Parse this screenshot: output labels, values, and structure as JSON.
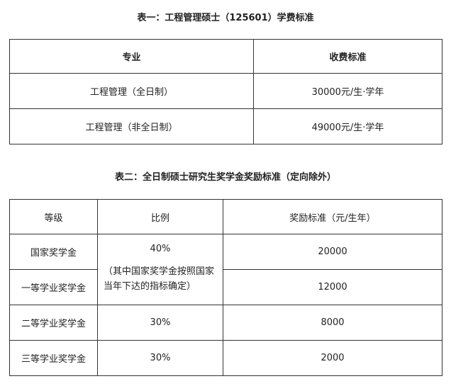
{
  "table1": {
    "title": "表一：工程管理硕士（125601）学费标准",
    "headers": [
      "专业",
      "收费标准"
    ],
    "rows": [
      [
        "工程管理（全日制）",
        "30000元/生·学年"
      ],
      [
        "工程管理（非全日制）",
        "49000元/生·学年"
      ]
    ]
  },
  "table2": {
    "title": "表二：全日制硕士研究生奖学金奖励标准（定向除外）",
    "headers": [
      "等级",
      "比例",
      "奖励标准（元/生年）"
    ],
    "rows": [
      {
        "level": "国家奖学金",
        "ratio": "40%",
        "amount": "20000"
      },
      {
        "level": "一等学业奖学金",
        "ratio_note": "（其中国家奖学金按照国家当年下达的指标确定）",
        "amount": "12000"
      },
      {
        "level": "二等学业奖学金",
        "ratio": "30%",
        "amount": "8000"
      },
      {
        "level": "三等学业奖学金",
        "ratio": "30%",
        "amount": "2000"
      }
    ]
  }
}
